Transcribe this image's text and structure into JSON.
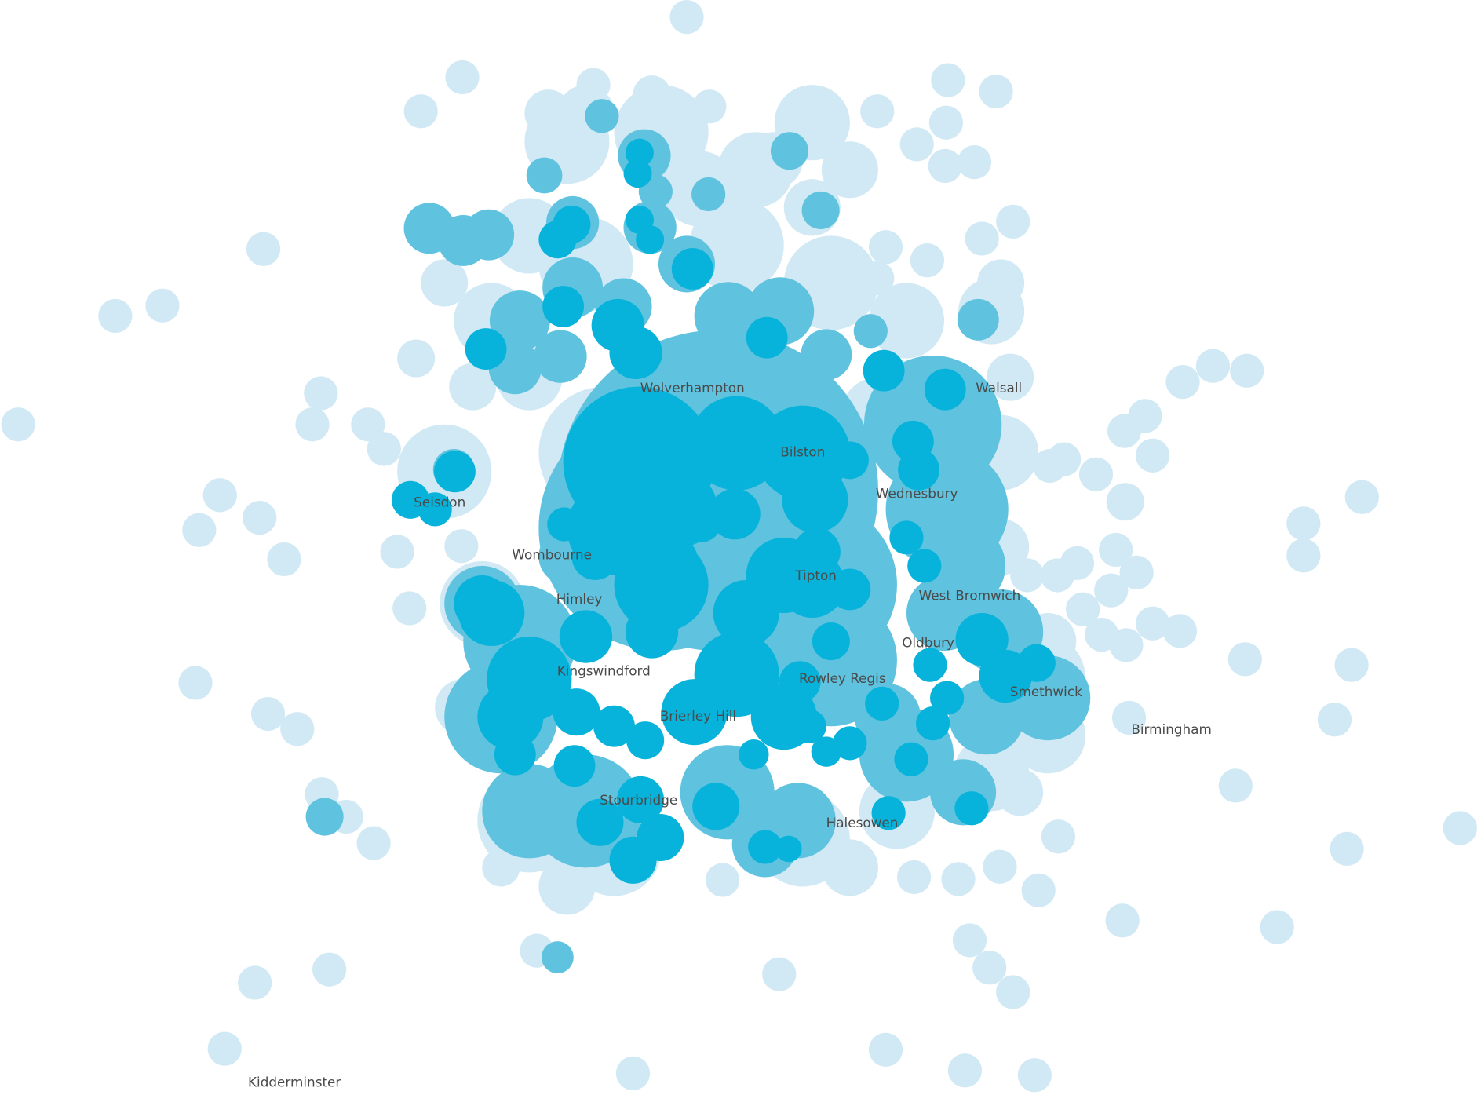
{
  "labels": [
    "Wolverhampton",
    "Walsall",
    "Bilston",
    "Wednesbury",
    "Seisdon",
    "Wombourne",
    "Tipton",
    "West Bromwich",
    "Himley",
    "Oldbury",
    "Kingswindford",
    "Rowley Regis",
    "Smethwick",
    "Brierley Hill",
    "Birmingham",
    "Stourbridge",
    "Halesowen",
    "Kidderminster"
  ]
}
